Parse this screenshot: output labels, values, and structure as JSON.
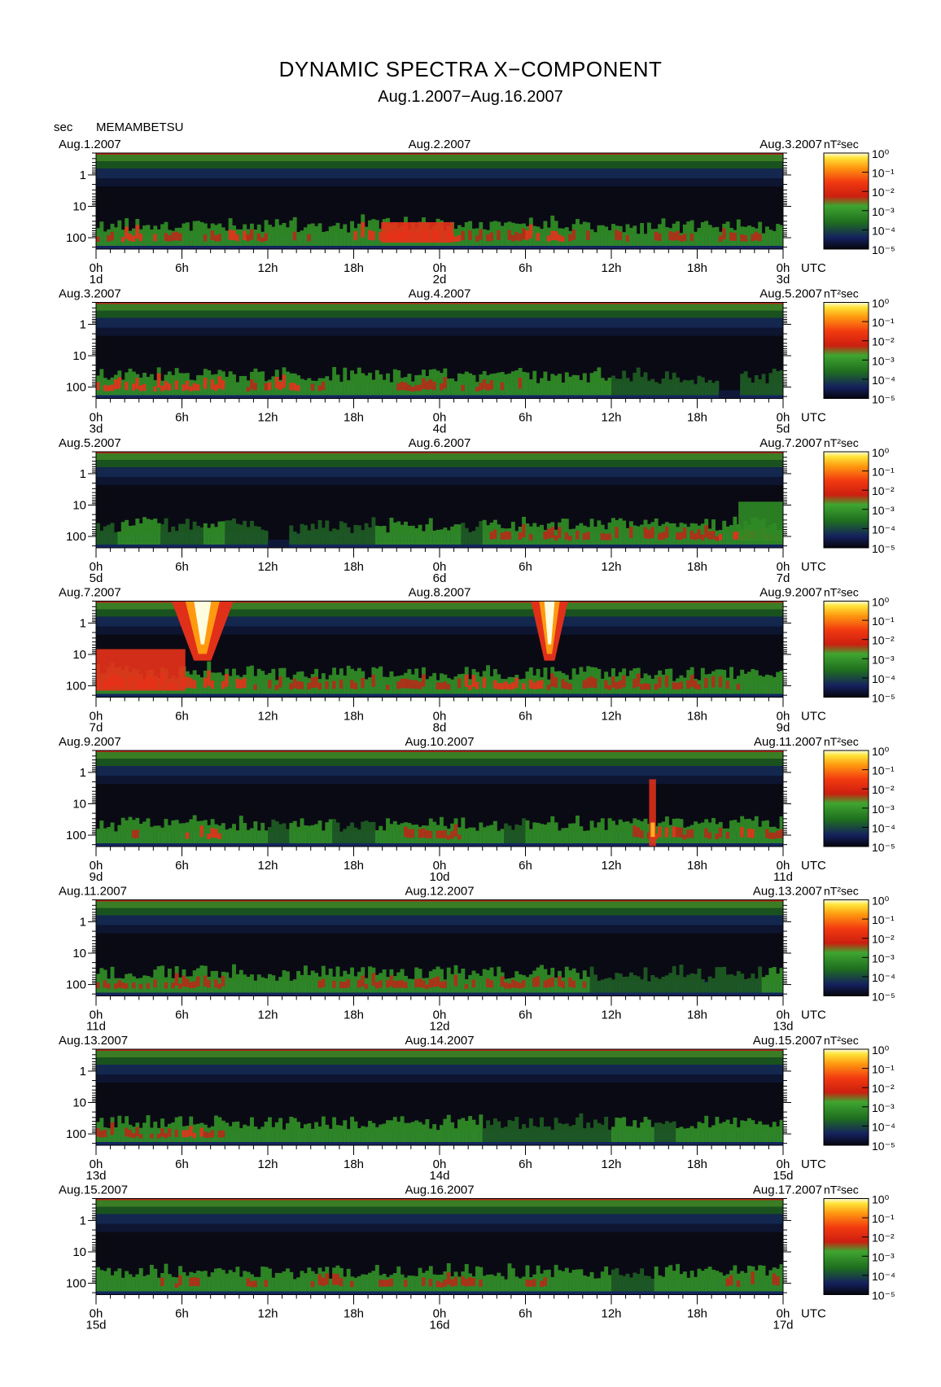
{
  "title": "DYNAMIC SPECTRA X−COMPONENT",
  "subtitle": "Aug.1.2007−Aug.16.2007",
  "y_unit": "sec",
  "station": "MEMAMBETSU",
  "colorbar_unit": "nT²sec",
  "colors": {
    "scale": [
      "#0a0a14",
      "#15215e",
      "#1f6e1f",
      "#3fa530",
      "#cc1f10",
      "#f23a10",
      "#ff9a10",
      "#ffe438",
      "#fffde0"
    ],
    "top_edge": "#b8281a"
  },
  "chart_data": {
    "type": "heatmap",
    "y_axis": {
      "label": "sec",
      "ticks": [
        "1",
        "10",
        "100"
      ],
      "scale": "log",
      "inverted": true
    },
    "x_axis": {
      "ticks": [
        "0h",
        "6h",
        "12h",
        "18h",
        "0h",
        "6h",
        "12h",
        "18h",
        "0h"
      ],
      "unit_label": "UTC"
    },
    "colorbar": {
      "label": "nT²sec",
      "ticks": [
        "10⁰",
        "10⁻¹",
        "10⁻²",
        "10⁻³",
        "10⁻⁴",
        "10⁻⁵"
      ],
      "scale": "log"
    },
    "panels": [
      {
        "dates": [
          "Aug.1.2007",
          "Aug.2.2007",
          "Aug.3.2007"
        ],
        "day_labels": [
          "1d",
          "2d",
          "3d"
        ],
        "seed": 11,
        "power": [
          3,
          4,
          4,
          3,
          2,
          3,
          4,
          3,
          2,
          3,
          2,
          2,
          5,
          5,
          5,
          4,
          4,
          3,
          3,
          3,
          4,
          5,
          3,
          2,
          3,
          2,
          3,
          3,
          2,
          3,
          3,
          2
        ]
      },
      {
        "dates": [
          "Aug.3.2007",
          "Aug.4.2007",
          "Aug.5.2007"
        ],
        "day_labels": [
          "3d",
          "4d",
          "5d"
        ],
        "seed": 23,
        "power": [
          4,
          4,
          4,
          4,
          4,
          4,
          2,
          3,
          4,
          4,
          3,
          2,
          2,
          2,
          3,
          3,
          3,
          3,
          3,
          3,
          2,
          2,
          2,
          2,
          1,
          1,
          1,
          1,
          1,
          0,
          1,
          1
        ]
      },
      {
        "dates": [
          "Aug.5.2007",
          "Aug.6.2007",
          "Aug.7.2007"
        ],
        "day_labels": [
          "5d",
          "6d",
          "7d"
        ],
        "seed": 37,
        "power": [
          1,
          2,
          2,
          1,
          1,
          2,
          1,
          1,
          0,
          1,
          1,
          1,
          1,
          2,
          2,
          2,
          2,
          1,
          3,
          3,
          3,
          3,
          3,
          3,
          3,
          3,
          3,
          3,
          3,
          4,
          4,
          4
        ]
      },
      {
        "dates": [
          "Aug.7.2007",
          "Aug.8.2007",
          "Aug.9.2007"
        ],
        "day_labels": [
          "7d",
          "8d",
          "9d"
        ],
        "seed": 41,
        "power": [
          5,
          5,
          5,
          5,
          5,
          5,
          4,
          3,
          3,
          3,
          3,
          3,
          3,
          3,
          3,
          3,
          3,
          4,
          4,
          4,
          4,
          3,
          3,
          3,
          3,
          3,
          3,
          3,
          3,
          3,
          2,
          2
        ]
      },
      {
        "dates": [
          "Aug.9.2007",
          "Aug.10.2007",
          "Aug.11.2007"
        ],
        "day_labels": [
          "9d",
          "10d",
          "11d"
        ],
        "seed": 53,
        "power": [
          2,
          3,
          2,
          2,
          4,
          4,
          2,
          2,
          1,
          2,
          2,
          1,
          1,
          2,
          3,
          3,
          3,
          2,
          2,
          1,
          2,
          2,
          2,
          2,
          2,
          3,
          4,
          3,
          3,
          3,
          4,
          3
        ]
      },
      {
        "dates": [
          "Aug.11.2007",
          "Aug.12.2007",
          "Aug.13.2007"
        ],
        "day_labels": [
          "11d",
          "12d",
          "13d"
        ],
        "seed": 67,
        "power": [
          3,
          3,
          3,
          3,
          3,
          3,
          2,
          2,
          2,
          2,
          3,
          3,
          3,
          3,
          3,
          3,
          3,
          3,
          3,
          3,
          3,
          3,
          3,
          1,
          1,
          1,
          1,
          1,
          1,
          1,
          1,
          2
        ]
      },
      {
        "dates": [
          "Aug.13.2007",
          "Aug.14.2007",
          "Aug.15.2007"
        ],
        "day_labels": [
          "13d",
          "14d",
          "15d"
        ],
        "seed": 79,
        "power": [
          3,
          3,
          3,
          3,
          4,
          3,
          2,
          2,
          2,
          2,
          2,
          2,
          2,
          2,
          2,
          2,
          2,
          2,
          1,
          1,
          1,
          1,
          1,
          1,
          2,
          2,
          1,
          2,
          2,
          2,
          2,
          2
        ]
      },
      {
        "dates": [
          "Aug.15.2007",
          "Aug.16.2007",
          "Aug.17.2007"
        ],
        "day_labels": [
          "15d",
          "16d",
          "17d"
        ],
        "seed": 83,
        "power": [
          2,
          2,
          2,
          3,
          3,
          2,
          2,
          3,
          2,
          2,
          3,
          3,
          2,
          3,
          3,
          3,
          3,
          3,
          2,
          2,
          3,
          2,
          2,
          2,
          1,
          1,
          2,
          2,
          2,
          3,
          3,
          3
        ]
      }
    ],
    "features": [
      {
        "panel": 0,
        "from_frac": 0.415,
        "to_frac": 0.52,
        "level": 4,
        "top_period_frac": 0.72
      },
      {
        "panel": 3,
        "from_frac": 0.0,
        "to_frac": 0.13,
        "level": 4,
        "top_period_frac": 0.5
      },
      {
        "panel": 3,
        "from_frac": 0.13,
        "to_frac": 0.18,
        "level": 6,
        "top_period_frac": 0.0,
        "type": "burst"
      },
      {
        "panel": 3,
        "from_frac": 0.645,
        "to_frac": 0.675,
        "level": 6,
        "top_period_frac": 0.0,
        "type": "burst"
      },
      {
        "panel": 4,
        "from_frac": 0.805,
        "to_frac": 0.815,
        "level": 4,
        "top_period_frac": 0.3,
        "type": "spike"
      },
      {
        "panel": 2,
        "from_frac": 0.935,
        "to_frac": 1.0,
        "level": 3,
        "top_period_frac": 0.52
      }
    ]
  }
}
